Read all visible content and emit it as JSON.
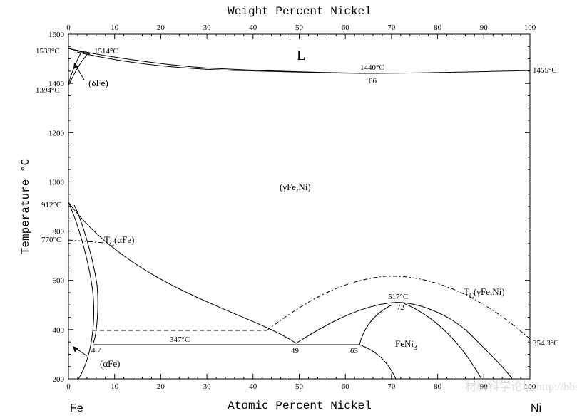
{
  "diagram": {
    "top_axis_title": "Weight Percent Nickel",
    "bottom_axis_title": "Atomic Percent Nickel",
    "y_axis_title": "Temperature °C",
    "left_element": "Fe",
    "right_element": "Ni",
    "watermark": "材料科学论坛 http://bbs.mse.tsinghua.edu.cn"
  },
  "chart_data": {
    "type": "phase-diagram",
    "x_ticks": [
      "0",
      "10",
      "20",
      "30",
      "40",
      "50",
      "60",
      "70",
      "80",
      "90",
      "100"
    ],
    "y_ticks": [
      "200",
      "400",
      "600",
      "800",
      "1000",
      "1200",
      "1400",
      "1600"
    ],
    "x_range": [
      0,
      100
    ],
    "y_range": [
      200,
      1600
    ],
    "labels": {
      "L": "L",
      "delta": "(δFe)",
      "gamma": "(γFe,Ni)",
      "alpha": "(αFe)",
      "feni3": "FeNi",
      "feni3_sub": "3",
      "tc_alpha_pre": "T",
      "tc_alpha_sub": "C",
      "tc_alpha_post": "(αFe)",
      "tc_gamma_pre": "T",
      "tc_gamma_sub": "C",
      "tc_gamma_post": "(γFe,Ni)",
      "t1538": "1538°C",
      "t1514": "1514°C",
      "t1394": "1394°C",
      "t1440": "1440°C",
      "c66": "66",
      "t1455": "1455°C",
      "t912": "912°C",
      "t770": "770°C",
      "t517": "517°C",
      "c72": "72",
      "t347": "347°C",
      "c4_7": "4.7",
      "c49": "49",
      "c63": "63",
      "t354": "354.3°C"
    },
    "points": {
      "melting_fe": [
        0,
        1538
      ],
      "peritectic": [
        4,
        1514
      ],
      "min_liquidus": [
        66,
        1440
      ],
      "melting_ni": [
        100,
        1455
      ],
      "gamma_delta_fe": [
        0,
        1394
      ],
      "alpha_gamma_fe": [
        0,
        912
      ],
      "curie_fe": [
        0,
        770
      ],
      "feni3_max": [
        72,
        517
      ],
      "eutectoid": [
        49,
        347
      ],
      "curie_ni": [
        100,
        354.3
      ]
    }
  }
}
